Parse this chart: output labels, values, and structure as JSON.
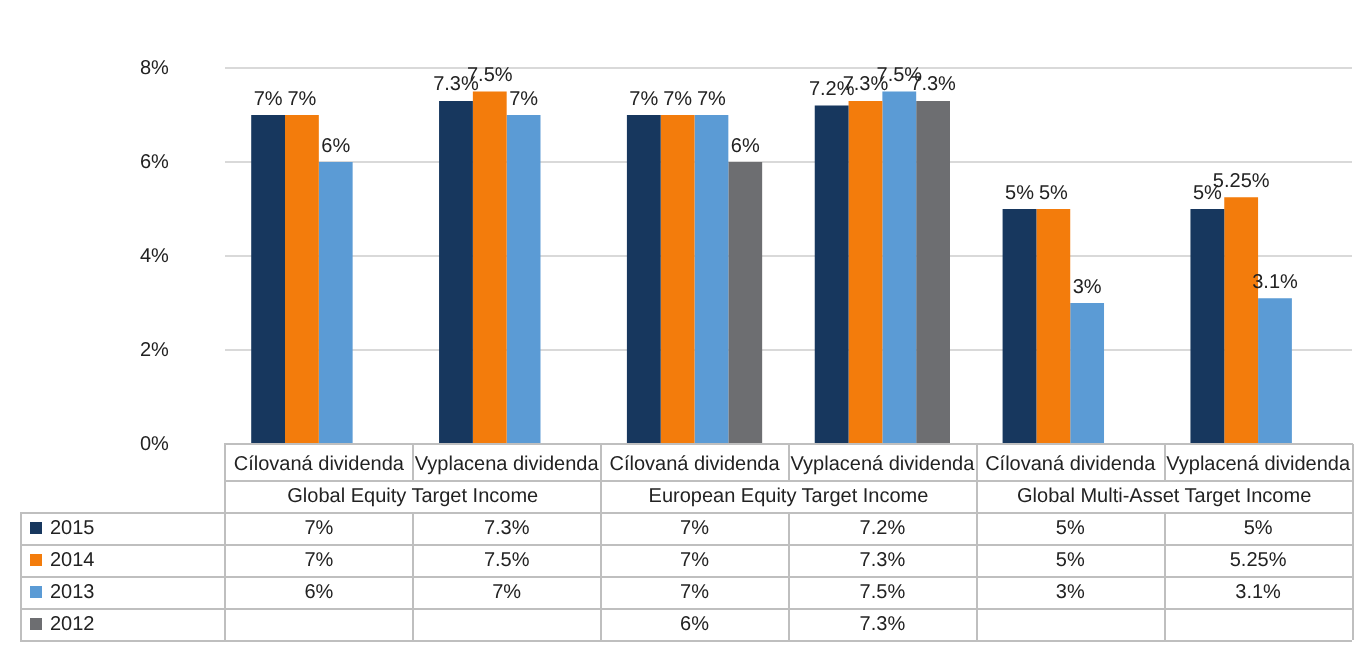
{
  "chart_data": {
    "type": "bar",
    "categories": [
      "Cílovaná dividenda",
      "Vyplacena dividenda",
      "Cílovaná dividenda",
      "Vyplacená dividenda",
      "Cílovaná dividenda",
      "Vyplacená dividenda"
    ],
    "annotations": [
      "Global Equity Target Income",
      "European Equity Target Income",
      "Global Multi-Asset Target Income"
    ],
    "series": [
      {
        "name": "2015",
        "color": "#17375e",
        "values": [
          7,
          7.3,
          7,
          7.2,
          5,
          5
        ],
        "value_labels": [
          "7%",
          "7.3%",
          "7%",
          "7.2%",
          "5%",
          "5%"
        ]
      },
      {
        "name": "2014",
        "color": "#f37c0c",
        "values": [
          7,
          7.5,
          7,
          7.3,
          5,
          5.25
        ],
        "value_labels": [
          "7%",
          "7.5%",
          "7%",
          "7.3%",
          "5%",
          "5.25%"
        ]
      },
      {
        "name": "2013",
        "color": "#5b9bd5",
        "values": [
          6,
          7,
          7,
          7.5,
          3,
          3.1
        ],
        "value_labels": [
          "6%",
          "7%",
          "7%",
          "7.5%",
          "3%",
          "3.1%"
        ]
      },
      {
        "name": "2012",
        "color": "#6d6e71",
        "values": [
          null,
          null,
          6,
          7.3,
          null,
          null
        ],
        "value_labels": [
          null,
          null,
          "6%",
          "7.3%",
          null,
          null
        ]
      }
    ],
    "ylim": [
      0,
      8
    ],
    "yticks": [
      {
        "value": 0,
        "label": "0%"
      },
      {
        "value": 2,
        "label": "2%"
      },
      {
        "value": 4,
        "label": "4%"
      },
      {
        "value": 6,
        "label": "6%"
      },
      {
        "value": 8,
        "label": "8%"
      }
    ],
    "grid": "y",
    "legend": "bottom"
  }
}
